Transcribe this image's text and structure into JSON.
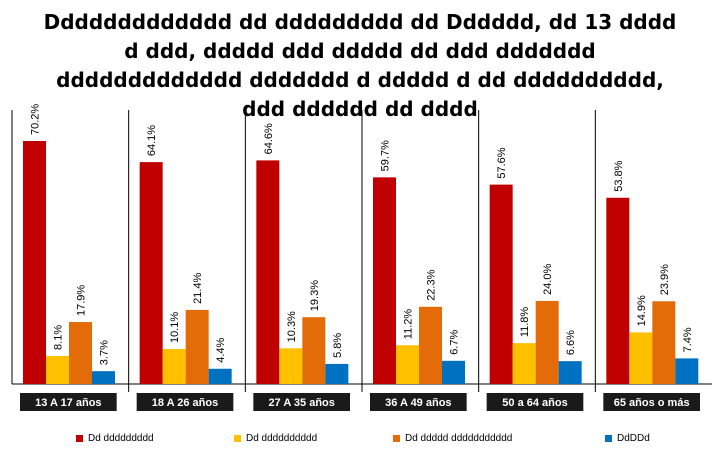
{
  "chart_data": {
    "type": "bar",
    "title": "Ddddddddddddd dd ddddddddd dd Dddddd, dd 13 dddd\nd ddd, ddddd ddd ddddd dd ddd ddddddd\nddddddddddddd ddddddd d ddddd d dd dddddddddd,\nddd dddddd dd dddd",
    "categories": [
      "13 A 17 años",
      "18 A 26 años",
      "27 A 35 años",
      "36 A 49 años",
      "50 a 64 años",
      "65 años o más"
    ],
    "series": [
      {
        "name": "Dd ddddddddd",
        "color": "#c00000",
        "values": [
          70.2,
          64.1,
          64.6,
          59.7,
          57.6,
          53.8
        ],
        "labels": [
          "70.2%",
          "64.1%",
          "64.6%",
          "59.7%",
          "57.6%",
          "53.8%"
        ]
      },
      {
        "name": "Dd dddddddddd",
        "color": "#ffc000",
        "values": [
          8.1,
          10.1,
          10.3,
          11.2,
          11.8,
          14.9
        ],
        "labels": [
          "8.1%",
          "10.1%",
          "10.3%",
          "11.2%",
          "11.8%",
          "14.9%"
        ]
      },
      {
        "name": "Dd ddddd ddddddddddd",
        "color": "#e36c09",
        "values": [
          17.9,
          21.4,
          19.3,
          22.3,
          24.0,
          23.9
        ],
        "labels": [
          "17.9%",
          "21.4%",
          "19.3%",
          "22.3%",
          "24.0%",
          "23.9%"
        ]
      },
      {
        "name": "DdDDd",
        "color": "#0070c0",
        "values": [
          3.7,
          4.4,
          5.8,
          6.7,
          6.6,
          7.4
        ],
        "labels": [
          "3.7%",
          "4.4%",
          "5.8%",
          "6.7%",
          "6.6%",
          "7.4%"
        ]
      }
    ],
    "ylim": [
      0,
      80
    ],
    "grid": false,
    "legend_position": "bottom"
  }
}
